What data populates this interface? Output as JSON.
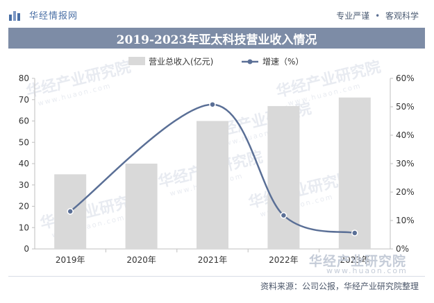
{
  "header": {
    "brand": "华经情报网",
    "slogan_left": "专业严谨",
    "slogan_sep": "•",
    "slogan_right": "客观科学"
  },
  "chart_data": {
    "type": "bar",
    "title": "2019-2023年亚太科技营业收入情况",
    "categories": [
      "2019年",
      "2020年",
      "2021年",
      "2022年",
      "2023年"
    ],
    "series": [
      {
        "name": "营业总收入(亿元)",
        "type": "bar",
        "axis": "left",
        "values": [
          35,
          40,
          60,
          67,
          71
        ],
        "color": "#d9d9d9"
      },
      {
        "name": "增速（%）",
        "type": "line",
        "axis": "right",
        "values": [
          13.2,
          null,
          50.8,
          11.8,
          5.6
        ],
        "color": "#5a6f96"
      }
    ],
    "y_left": {
      "min": 0,
      "max": 80,
      "ticks": [
        "0",
        "10",
        "20",
        "30",
        "40",
        "50",
        "60",
        "70",
        "80"
      ]
    },
    "y_right": {
      "min": 0,
      "max": 60,
      "ticks": [
        "0%",
        "10%",
        "20%",
        "30%",
        "40%",
        "50%",
        "60%"
      ]
    },
    "legend_position": "top-center",
    "grid": false
  },
  "watermark": {
    "text": "华经产业研究院",
    "url": "www.huaon.com"
  },
  "footer": {
    "source": "资料来源：公司公报，华经产业研究院整理"
  }
}
